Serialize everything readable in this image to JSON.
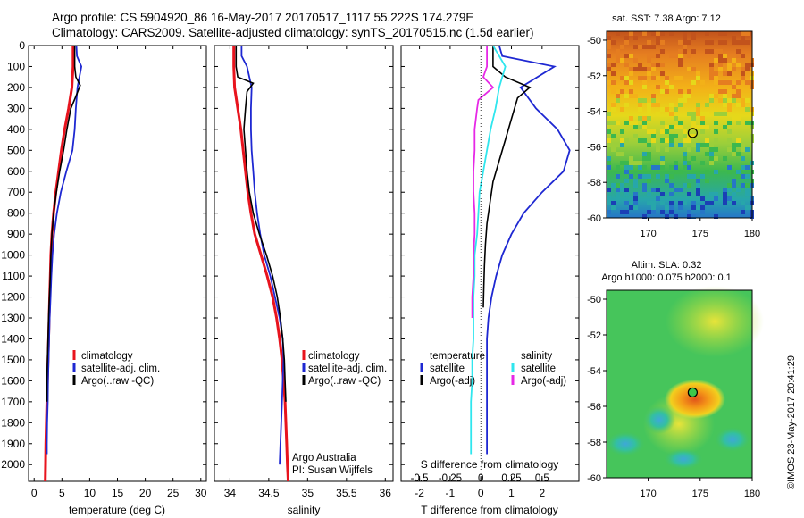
{
  "header": {
    "line1": "Argo profile: CS 5904920_86 16-May-2017 20170517_1117 55.222S 174.279E",
    "line2": "Climatology: CARS2009. Satellite-adjusted climatology: synTS_20170515.nc (1.5d earlier)"
  },
  "timestamp": "©IMOS 23-May-2017 20:41:29",
  "colors": {
    "climatology": "#e8141e",
    "satellite": "#1e28d2",
    "argo": "#000000",
    "satellite_salinity": "#2fe6ee",
    "argo_salinity": "#e628e6"
  },
  "chart_data": [
    {
      "type": "line",
      "xlabel": "temperature (deg C)",
      "ylabel": "",
      "xlim": [
        -1,
        31
      ],
      "ylim": [
        2080,
        0
      ],
      "xticks": [
        0,
        5,
        10,
        15,
        20,
        25,
        30
      ],
      "yticks": [
        0,
        100,
        200,
        300,
        400,
        500,
        600,
        700,
        800,
        900,
        1000,
        1100,
        1200,
        1300,
        1400,
        1500,
        1600,
        1700,
        1800,
        1900,
        2000
      ],
      "legend": [
        "climatology",
        "satellite-adj. clim.",
        "Argo(..raw -QC)"
      ],
      "legend_position": "lower-middle",
      "series": [
        {
          "name": "climatology",
          "color": "#e8141e",
          "x": [
            7.0,
            7.0,
            6.8,
            6.2,
            5.5,
            4.9,
            4.4,
            3.9,
            3.5,
            3.2,
            3.0,
            2.9,
            2.8,
            2.7,
            2.6,
            2.5,
            2.4,
            2.3,
            2.2,
            2.1,
            2.05,
            2.0
          ],
          "y": [
            0,
            100,
            200,
            300,
            400,
            500,
            600,
            700,
            800,
            900,
            1000,
            1100,
            1200,
            1300,
            1400,
            1500,
            1600,
            1700,
            1800,
            1900,
            2000,
            2080
          ]
        },
        {
          "name": "satellite-adj. clim.",
          "color": "#1e28d2",
          "x": [
            7.6,
            7.7,
            8.5,
            7.8,
            7.5,
            7.3,
            6.9,
            5.8,
            4.8,
            4.1,
            3.6,
            3.3,
            3.1,
            2.95,
            2.8,
            2.7,
            2.6,
            2.5,
            2.45,
            2.35,
            2.3,
            2.3
          ],
          "y": [
            0,
            50,
            100,
            200,
            300,
            400,
            500,
            600,
            700,
            800,
            900,
            1000,
            1100,
            1200,
            1300,
            1400,
            1500,
            1600,
            1700,
            1800,
            1900,
            1950
          ]
        },
        {
          "name": "Argo(..raw -QC)",
          "color": "#000000",
          "x": [
            7.3,
            7.3,
            7.5,
            8.3,
            7.4,
            6.6,
            5.9,
            5.3,
            4.6,
            4.0,
            3.5,
            3.2,
            3.0,
            2.9,
            2.75,
            2.6,
            2.5,
            2.4,
            2.3,
            2.3
          ],
          "y": [
            0,
            100,
            150,
            190,
            250,
            300,
            400,
            500,
            600,
            700,
            800,
            900,
            1000,
            1100,
            1200,
            1300,
            1400,
            1500,
            1600,
            1700
          ]
        }
      ]
    },
    {
      "type": "line",
      "xlabel": "salinity",
      "ylabel": "",
      "xlim": [
        33.8,
        36.1
      ],
      "ylim": [
        2080,
        0
      ],
      "xticks": [
        34,
        34.5,
        35,
        35.5,
        36
      ],
      "legend": [
        "climatology",
        "satellite-adj. clim.",
        "Argo(..raw -QC)"
      ],
      "legend_position": "lower-right",
      "annotations": [
        "Argo Australia",
        "PI: Susan Wijffels"
      ],
      "series": [
        {
          "name": "climatology",
          "color": "#e8141e",
          "x": [
            34.05,
            34.05,
            34.06,
            34.1,
            34.14,
            34.17,
            34.2,
            34.23,
            34.27,
            34.32,
            34.4,
            34.48,
            34.55,
            34.6,
            34.64,
            34.67,
            34.69,
            34.71,
            34.72,
            34.73,
            34.74,
            34.75
          ],
          "y": [
            0,
            100,
            200,
            300,
            400,
            500,
            600,
            700,
            800,
            900,
            1000,
            1100,
            1200,
            1300,
            1400,
            1500,
            1600,
            1700,
            1800,
            1900,
            2000,
            2080
          ]
        },
        {
          "name": "satellite-adj. clim.",
          "color": "#1e28d2",
          "x": [
            34.15,
            34.15,
            34.22,
            34.28,
            34.27,
            34.27,
            34.28,
            34.3,
            34.32,
            34.35,
            34.39,
            34.44,
            34.52,
            34.58,
            34.64,
            34.68,
            34.69,
            34.68,
            34.67,
            34.66,
            34.65,
            34.64
          ],
          "y": [
            0,
            50,
            100,
            200,
            300,
            400,
            500,
            600,
            700,
            800,
            900,
            1000,
            1100,
            1200,
            1300,
            1400,
            1500,
            1600,
            1700,
            1800,
            1900,
            2000
          ]
        },
        {
          "name": "Argo(..raw -QC)",
          "color": "#000000",
          "x": [
            34.08,
            34.08,
            34.1,
            34.3,
            34.22,
            34.2,
            34.18,
            34.2,
            34.22,
            34.25,
            34.3,
            34.38,
            34.47,
            34.55,
            34.61,
            34.65,
            34.68,
            34.7,
            34.71,
            34.72
          ],
          "y": [
            0,
            100,
            150,
            180,
            220,
            300,
            400,
            500,
            600,
            700,
            800,
            900,
            1000,
            1100,
            1200,
            1300,
            1400,
            1500,
            1600,
            1700
          ]
        }
      ]
    },
    {
      "type": "line",
      "xlabel": "T difference from climatology",
      "x2label": "S difference from climatology",
      "ylabel": "",
      "xlim": [
        -2.6,
        3.2
      ],
      "x2lim": [
        -0.65,
        0.8
      ],
      "ylim": [
        2080,
        0
      ],
      "xticks": [
        -2,
        -1,
        0,
        1,
        2
      ],
      "x2ticks": [
        -0.5,
        -0.25,
        0,
        0.25,
        0.5
      ],
      "x2ticklabels": [
        "-0.5",
        "-0.25",
        "0",
        "0.25",
        "0.5"
      ],
      "legend_groups": [
        {
          "title": "temperature",
          "entries": [
            "satellite",
            "Argo(-adj)"
          ]
        },
        {
          "title": "salinity",
          "entries": [
            "satellite",
            "Argo(-adj)"
          ]
        }
      ],
      "series": [
        {
          "name": "satellite",
          "color": "#1e28d2",
          "x": [
            0.6,
            0.7,
            2.4,
            1.3,
            1.8,
            2.5,
            2.9,
            2.7,
            2.0,
            1.4,
            1.0,
            0.7,
            0.5,
            0.35,
            0.25,
            0.2,
            0.2,
            0.2,
            0.2,
            0.2,
            0.2
          ],
          "y": [
            0,
            50,
            100,
            200,
            300,
            400,
            500,
            600,
            700,
            800,
            900,
            1000,
            1100,
            1200,
            1300,
            1400,
            1500,
            1600,
            1700,
            1800,
            1950
          ]
        },
        {
          "name": "Argo(-adj)",
          "color": "#000000",
          "x": [
            0.4,
            0.4,
            0.8,
            1.6,
            1.2,
            1.0,
            0.8,
            0.6,
            0.4,
            0.3,
            0.2,
            0.15,
            0.12,
            0.1,
            0.08
          ],
          "y": [
            0,
            100,
            150,
            200,
            250,
            350,
            450,
            550,
            650,
            750,
            850,
            950,
            1050,
            1150,
            1250
          ]
        },
        {
          "name": "satellite",
          "color": "#2fe6ee",
          "x": [
            0.1,
            0.15,
            0.2,
            0.15,
            0.12,
            0.08,
            0.05,
            0.02,
            -0.01,
            -0.02,
            -0.03,
            -0.05,
            -0.05,
            -0.06,
            -0.06,
            -0.06,
            -0.07,
            -0.07,
            -0.08,
            -0.08,
            -0.08
          ],
          "y": [
            0,
            50,
            100,
            200,
            300,
            400,
            500,
            600,
            700,
            800,
            900,
            1000,
            1100,
            1200,
            1300,
            1400,
            1500,
            1600,
            1700,
            1800,
            1950
          ]
        },
        {
          "name": "Argo(-adj)",
          "color": "#e628e6",
          "x": [
            0.05,
            0.05,
            0.02,
            0.1,
            -0.02,
            -0.03,
            -0.05,
            -0.05,
            -0.06,
            -0.06,
            -0.05,
            -0.05,
            -0.06,
            -0.06,
            -0.07,
            -0.07
          ],
          "y": [
            0,
            100,
            150,
            200,
            260,
            300,
            400,
            500,
            600,
            700,
            800,
            900,
            1000,
            1100,
            1200,
            1300
          ]
        }
      ]
    },
    {
      "type": "heatmap",
      "title": "sat. SST: 7.38 Argo: 7.12",
      "xlim": [
        166,
        180
      ],
      "ylim": [
        -60,
        -49.5
      ],
      "xticks": [
        170,
        175,
        180
      ],
      "yticks": [
        -50,
        -52,
        -54,
        -56,
        -58,
        -60
      ],
      "marker": {
        "x": 174.279,
        "y": -55.222
      }
    },
    {
      "type": "heatmap",
      "title": "Altim. SLA: 0.32",
      "subtitle": "Argo h1000: 0.075 h2000: 0.1",
      "xlim": [
        166,
        180
      ],
      "ylim": [
        -60,
        -49.5
      ],
      "xticks": [
        170,
        175,
        180
      ],
      "yticks": [
        -50,
        -52,
        -54,
        -56,
        -58,
        -60
      ],
      "marker": {
        "x": 174.279,
        "y": -55.222
      }
    }
  ]
}
